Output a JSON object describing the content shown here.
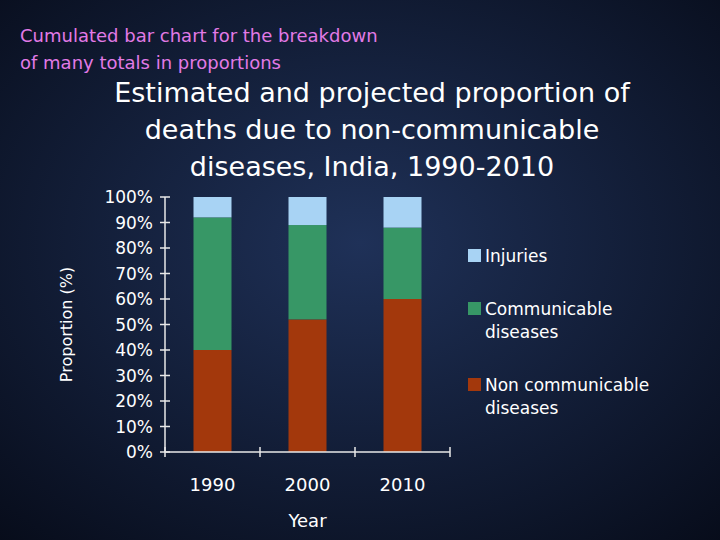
{
  "chart_data": {
    "type": "bar",
    "stacked": true,
    "annotations": [
      "Cumulated bar chart for the breakdown\nof many totals in proportions"
    ],
    "title": "Estimated and projected proportion of\ndeaths due to non-communicable\ndiseases, India, 1990-2010",
    "x_label": "Year",
    "y_label": "Proportion (%)",
    "categories": [
      "1990",
      "2000",
      "2010"
    ],
    "series": [
      {
        "name": "Non communicable diseases",
        "color": "#a3380c",
        "values": [
          40,
          52,
          60
        ]
      },
      {
        "name": "Communicable diseases",
        "color": "#379766",
        "values": [
          52,
          37,
          28
        ]
      },
      {
        "name": "Injuries",
        "color": "#a8d3f4",
        "values": [
          8,
          11,
          12
        ]
      }
    ],
    "ylim": [
      0,
      100
    ],
    "yticks": [
      {
        "value": 0,
        "label": "0%"
      },
      {
        "value": 10,
        "label": "10%"
      },
      {
        "value": 20,
        "label": "20%"
      },
      {
        "value": 30,
        "label": "30%"
      },
      {
        "value": 40,
        "label": "40%"
      },
      {
        "value": 50,
        "label": "50%"
      },
      {
        "value": 60,
        "label": "60%"
      },
      {
        "value": 70,
        "label": "70%"
      },
      {
        "value": 80,
        "label": "80%"
      },
      {
        "value": 90,
        "label": "90%"
      },
      {
        "value": 100,
        "label": "100%"
      }
    ],
    "grid": false,
    "legend": "right"
  }
}
